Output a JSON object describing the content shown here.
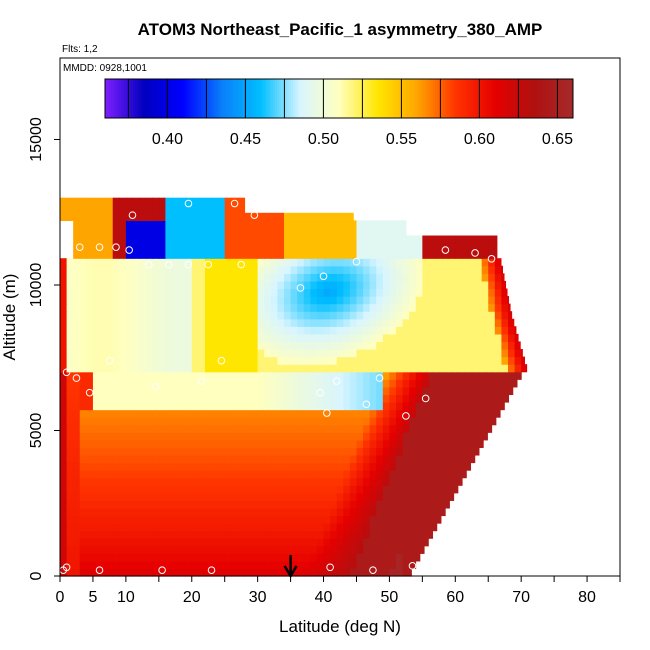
{
  "chart_data": {
    "type": "heatmap",
    "title": "ATOM3 Northeast_Pacific_1 asymmetry_380_AMP",
    "flights_label": "Flts: 1,2",
    "dates_label": "MMDD: 0928,1001",
    "xlabel": "Latitude (deg N)",
    "ylabel": "Altitude (m)",
    "xlim": [
      0,
      85
    ],
    "ylim": [
      0,
      17800
    ],
    "x_ticks": [
      0,
      5,
      10,
      20,
      30,
      40,
      50,
      60,
      70,
      80
    ],
    "x_minor_ticks": [
      15,
      25,
      35,
      45,
      55,
      65,
      75,
      85
    ],
    "y_ticks": [
      0,
      5000,
      10000,
      15000
    ],
    "colorbar": {
      "range": [
        0.36,
        0.66
      ],
      "ticks": [
        0.4,
        0.45,
        0.5,
        0.55,
        0.6,
        0.65
      ],
      "tick_labels": [
        "0.40",
        "0.45",
        "0.50",
        "0.55",
        "0.60",
        "0.65"
      ],
      "colors": [
        "#7f1fff",
        "#0000bf",
        "#0000ff",
        "#0a7ffa",
        "#00bfff",
        "#d8f5ff",
        "#ffffbf",
        "#ffe600",
        "#ffa500",
        "#ff3300",
        "#e60000",
        "#b01010",
        "#a52a2a"
      ]
    },
    "latitude_marker": 35,
    "aircraft_obs": [
      {
        "lat": 0.5,
        "alt": 200
      },
      {
        "lat": 1.0,
        "alt": 300
      },
      {
        "lat": 6.0,
        "alt": 200
      },
      {
        "lat": 15.5,
        "alt": 200
      },
      {
        "lat": 23,
        "alt": 200
      },
      {
        "lat": 41,
        "alt": 300
      },
      {
        "lat": 47.5,
        "alt": 200
      },
      {
        "lat": 53.5,
        "alt": 350
      },
      {
        "lat": 1.0,
        "alt": 7000
      },
      {
        "lat": 2.5,
        "alt": 6800
      },
      {
        "lat": 4.5,
        "alt": 6300
      },
      {
        "lat": 14.5,
        "alt": 6500
      },
      {
        "lat": 21.5,
        "alt": 6700
      },
      {
        "lat": 24.5,
        "alt": 7400
      },
      {
        "lat": 39.5,
        "alt": 6300
      },
      {
        "lat": 42,
        "alt": 6700
      },
      {
        "lat": 48.5,
        "alt": 6800
      },
      {
        "lat": 40.5,
        "alt": 5600
      },
      {
        "lat": 46.5,
        "alt": 5900
      },
      {
        "lat": 52.5,
        "alt": 5500
      },
      {
        "lat": 55.5,
        "alt": 6100
      },
      {
        "lat": 71,
        "alt": 6200
      },
      {
        "lat": 7.5,
        "alt": 7400
      },
      {
        "lat": 3.0,
        "alt": 11300
      },
      {
        "lat": 6.0,
        "alt": 11300
      },
      {
        "lat": 8.5,
        "alt": 11300
      },
      {
        "lat": 10.5,
        "alt": 11200
      },
      {
        "lat": 13.5,
        "alt": 10700
      },
      {
        "lat": 16.5,
        "alt": 10700
      },
      {
        "lat": 19.5,
        "alt": 10700
      },
      {
        "lat": 22.5,
        "alt": 10700
      },
      {
        "lat": 27.5,
        "alt": 10700
      },
      {
        "lat": 11,
        "alt": 12400
      },
      {
        "lat": 19.5,
        "alt": 12800
      },
      {
        "lat": 26.5,
        "alt": 12800
      },
      {
        "lat": 29.5,
        "alt": 12400
      },
      {
        "lat": 36.5,
        "alt": 9900
      },
      {
        "lat": 40,
        "alt": 10300
      },
      {
        "lat": 45,
        "alt": 10800
      },
      {
        "lat": 58.5,
        "alt": 11200
      },
      {
        "lat": 63,
        "alt": 11100
      },
      {
        "lat": 65.5,
        "alt": 10900
      },
      {
        "lat": 68.5,
        "alt": 10800
      }
    ]
  }
}
